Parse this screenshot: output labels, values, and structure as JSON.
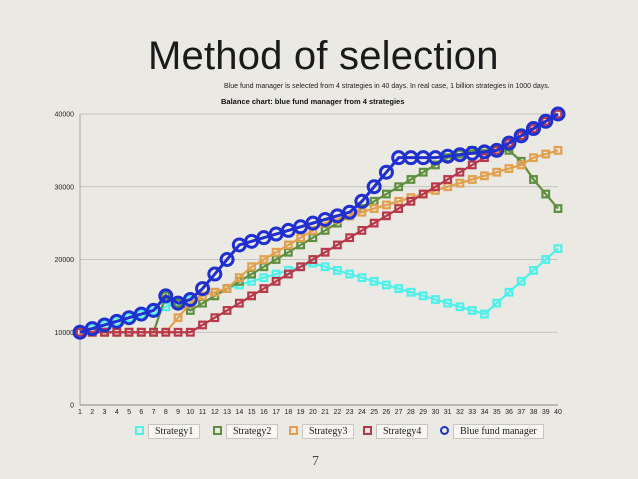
{
  "slide": {
    "title": "Method of selection",
    "subtitle": "Blue fund manager is selected from  4 strategies in 40 days. In real case, 1 billion strategies in 1000 days.",
    "page_number": "7"
  },
  "chart_data": {
    "type": "line",
    "title": "Balance chart: blue fund manager from 4 strategies",
    "xlabel": "",
    "ylabel": "",
    "x": [
      1,
      2,
      3,
      4,
      5,
      6,
      7,
      8,
      9,
      10,
      11,
      12,
      13,
      14,
      15,
      16,
      17,
      18,
      19,
      20,
      21,
      22,
      23,
      24,
      25,
      26,
      27,
      28,
      29,
      30,
      31,
      32,
      33,
      34,
      35,
      36,
      37,
      38,
      39,
      40
    ],
    "ylim": [
      0,
      40000
    ],
    "yticks": [
      0,
      10000,
      20000,
      30000,
      40000
    ],
    "grid": true,
    "legend_position": "bottom",
    "series": [
      {
        "name": "Strategy1",
        "color": "#4ff0ea",
        "marker": "square",
        "values": [
          10000,
          10500,
          11000,
          11500,
          12000,
          12500,
          13000,
          13500,
          14000,
          14500,
          15000,
          15500,
          16000,
          16500,
          17000,
          17500,
          18000,
          18500,
          19000,
          19500,
          19000,
          18500,
          18000,
          17500,
          17000,
          16500,
          16000,
          15500,
          15000,
          14500,
          14000,
          13500,
          13000,
          12500,
          14000,
          15500,
          17000,
          18500,
          20000,
          21500
        ]
      },
      {
        "name": "Strategy2",
        "color": "#5e8f3e",
        "marker": "square",
        "values": [
          10000,
          10000,
          10000,
          10000,
          10000,
          10000,
          10000,
          15000,
          14000,
          13000,
          14000,
          15000,
          16000,
          17000,
          18000,
          19000,
          20000,
          21000,
          22000,
          23000,
          24000,
          25000,
          26000,
          27000,
          28000,
          29000,
          30000,
          31000,
          32000,
          33000,
          34000,
          34500,
          35000,
          35000,
          35000,
          35000,
          33500,
          31000,
          29000,
          27000
        ]
      },
      {
        "name": "Strategy3",
        "color": "#e2a04e",
        "marker": "square",
        "values": [
          10000,
          10000,
          10000,
          10000,
          10000,
          10000,
          10000,
          10000,
          12000,
          14000,
          15000,
          15500,
          16000,
          17500,
          19000,
          20000,
          21000,
          22000,
          23000,
          24000,
          25000,
          25500,
          26000,
          26500,
          27000,
          27500,
          28000,
          28500,
          29000,
          29500,
          30000,
          30500,
          31000,
          31500,
          32000,
          32500,
          33000,
          34000,
          34500,
          35000
        ]
      },
      {
        "name": "Strategy4",
        "color": "#b8384a",
        "marker": "square",
        "values": [
          10000,
          10000,
          10000,
          10000,
          10000,
          10000,
          10000,
          10000,
          10000,
          10000,
          11000,
          12000,
          13000,
          14000,
          15000,
          16000,
          17000,
          18000,
          19000,
          20000,
          21000,
          22000,
          23000,
          24000,
          25000,
          26000,
          27000,
          28000,
          29000,
          30000,
          31000,
          32000,
          33000,
          34000,
          35000,
          36000,
          37000,
          38000,
          39000,
          40000
        ]
      },
      {
        "name": "Blue fund manager",
        "color": "#1f2fd0",
        "marker": "circle",
        "values": [
          10000,
          10500,
          11000,
          11500,
          12000,
          12500,
          13000,
          15000,
          14000,
          14500,
          16000,
          18000,
          20000,
          22000,
          22500,
          23000,
          23500,
          24000,
          24500,
          25000,
          25500,
          26000,
          26500,
          28000,
          30000,
          32000,
          34000,
          34000,
          34000,
          34000,
          34200,
          34400,
          34600,
          34800,
          35000,
          36000,
          37000,
          38000,
          39000,
          40000
        ]
      }
    ]
  }
}
